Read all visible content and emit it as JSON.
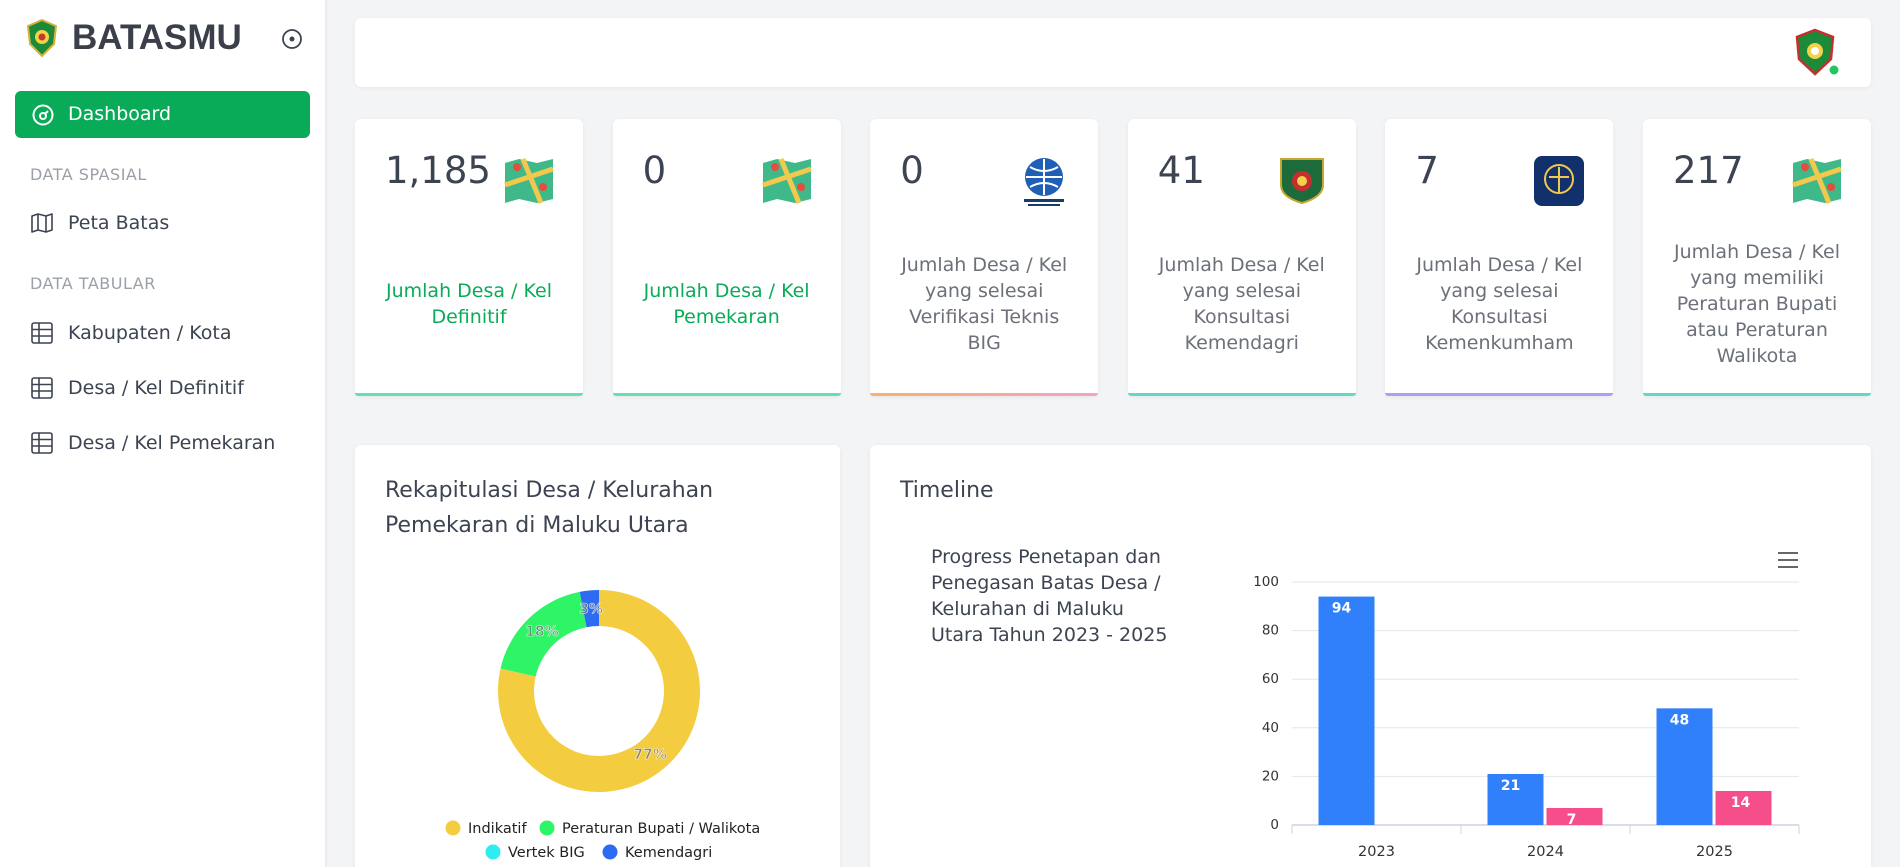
{
  "app": {
    "brand": "BATASMU"
  },
  "sidebar": {
    "active": "Dashboard",
    "sections": [
      {
        "title": "DATA SPASIAL",
        "items": [
          "Peta Batas"
        ]
      },
      {
        "title": "DATA TABULAR",
        "items": [
          "Kabupaten / Kota",
          "Desa / Kel Definitif",
          "Desa / Kel Pemekaran"
        ]
      }
    ]
  },
  "stats": [
    {
      "value": "1,185",
      "label": "Jumlah Desa / Kel Definitif"
    },
    {
      "value": 0,
      "label": "Jumlah Desa / Kel Pemekaran"
    },
    {
      "value": 0,
      "label": "Jumlah Desa / Kel yang selesai Verifikasi Teknis BIG"
    },
    {
      "value": 41,
      "label": "Jumlah Desa / Kel yang selesai Konsultasi Kemendagri"
    },
    {
      "value": 7,
      "label": "Jumlah Desa / Kel yang selesai Konsultasi Kemenkumham"
    },
    {
      "value": 217,
      "label": "Jumlah Desa / Kel yang memiliki Peraturan Bupati atau Peraturan Walikota"
    }
  ],
  "panels": {
    "timeline": "Timeline"
  },
  "chart_data": [
    {
      "type": "donut",
      "title": "Rekapitulasi Desa / Kelurahan Pemekaran di Maluku Utara",
      "categories": [
        "Indikatif",
        "Peraturan Bupati / Walikota",
        "Vertek BIG",
        "Kemendagri"
      ],
      "values": [
        77,
        18,
        0,
        3
      ],
      "value_labels": [
        "77%",
        "18%",
        null,
        "3%"
      ],
      "colors": [
        "#f4cc3f",
        "#2ef566",
        "#2eecef",
        "#2d6cf2"
      ]
    },
    {
      "type": "bar",
      "title": "Progress Penetapan dan Penegasan Batas Desa / Kelurahan di Maluku Utara Tahun 2023 - 2025",
      "categories": [
        "2023",
        "2024",
        "2025"
      ],
      "series": [
        {
          "color": "#2f80fa",
          "values": [
            94,
            21,
            48
          ]
        },
        {
          "color": "#f64d8b",
          "values": [
            null,
            7,
            14
          ]
        }
      ],
      "ylim": [
        0,
        100
      ],
      "yticks": [
        0,
        20,
        40,
        60,
        80,
        100
      ],
      "grid": true
    }
  ]
}
